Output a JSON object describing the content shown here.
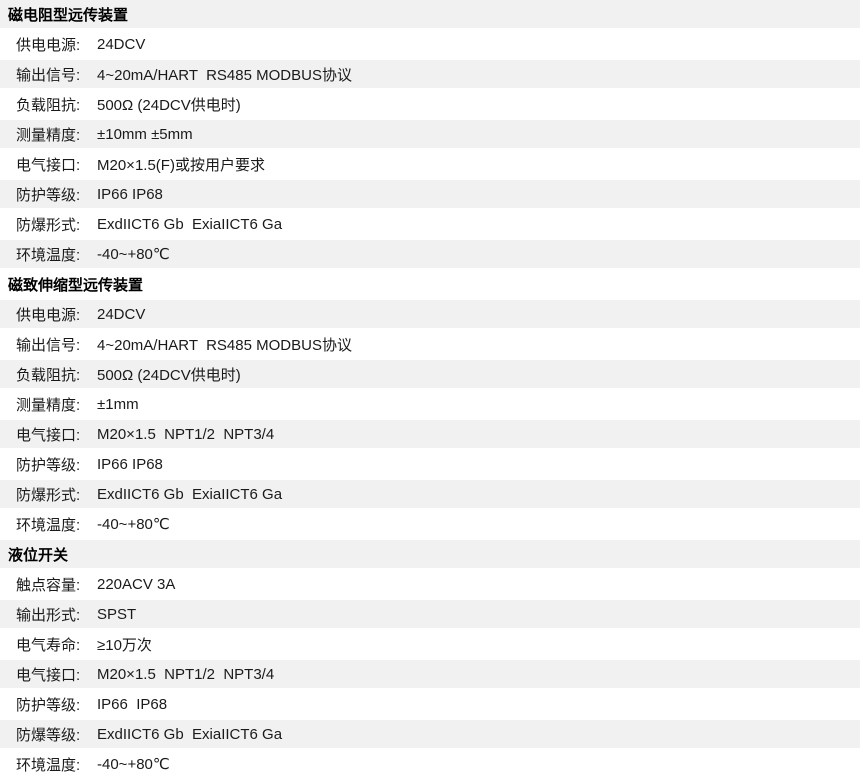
{
  "colors": {
    "stripe": "#f1f1f1",
    "text": "#1a1a1a",
    "background": "#ffffff"
  },
  "sections": [
    {
      "title": "磁电阻型远传装置",
      "rows": [
        {
          "label": "供电电源:",
          "value": "24DCV"
        },
        {
          "label": "输出信号:",
          "value": "4~20mA/HART  RS485 MODBUS协议"
        },
        {
          "label": "负载阻抗:",
          "value": "500Ω (24DCV供电时)"
        },
        {
          "label": "测量精度:",
          "value": "±10mm ±5mm"
        },
        {
          "label": "电气接口:",
          "value": "M20×1.5(F)或按用户要求"
        },
        {
          "label": "防护等级:",
          "value": "IP66 IP68"
        },
        {
          "label": "防爆形式:",
          "value": "ExdIICT6 Gb  ExiaIICT6 Ga"
        },
        {
          "label": "环境温度:",
          "value": "-40~+80℃"
        }
      ]
    },
    {
      "title": "磁致伸缩型远传装置",
      "rows": [
        {
          "label": "供电电源:",
          "value": "24DCV"
        },
        {
          "label": "输出信号:",
          "value": "4~20mA/HART  RS485 MODBUS协议"
        },
        {
          "label": "负载阻抗:",
          "value": "500Ω (24DCV供电时)"
        },
        {
          "label": "测量精度:",
          "value": "±1mm"
        },
        {
          "label": "电气接口:",
          "value": "M20×1.5  NPT1/2  NPT3/4"
        },
        {
          "label": "防护等级:",
          "value": "IP66 IP68"
        },
        {
          "label": "防爆形式:",
          "value": "ExdIICT6 Gb  ExiaIICT6 Ga"
        },
        {
          "label": "环境温度:",
          "value": "-40~+80℃"
        }
      ]
    },
    {
      "title": "液位开关",
      "rows": [
        {
          "label": "触点容量:",
          "value": "220ACV 3A"
        },
        {
          "label": "输出形式:",
          "value": "SPST"
        },
        {
          "label": "电气寿命:",
          "value": "≥10万次"
        },
        {
          "label": "电气接口:",
          "value": "M20×1.5  NPT1/2  NPT3/4"
        },
        {
          "label": "防护等级:",
          "value": "IP66  IP68"
        },
        {
          "label": "防爆等级:",
          "value": "ExdIICT6 Gb  ExiaIICT6 Ga"
        },
        {
          "label": "环境温度:",
          "value": "-40~+80℃"
        }
      ]
    }
  ]
}
